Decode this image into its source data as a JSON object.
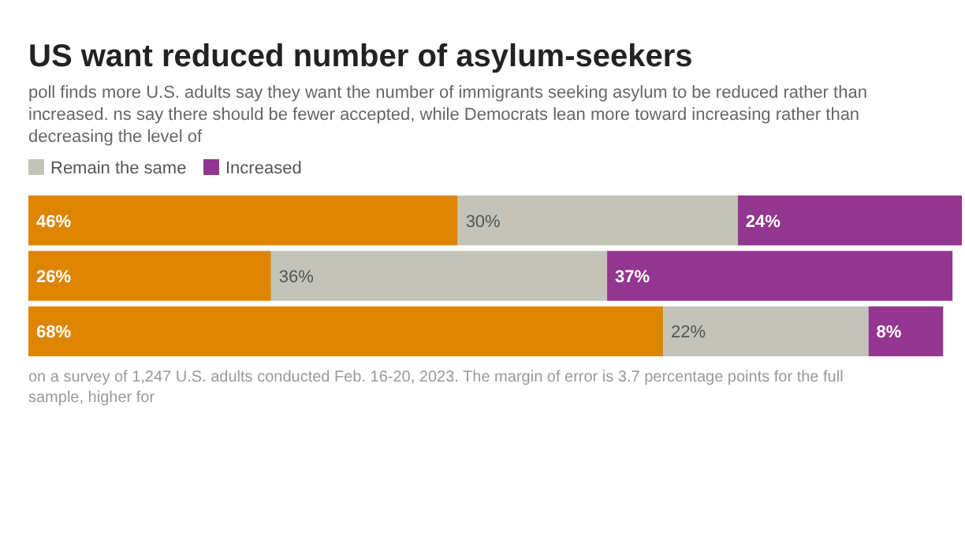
{
  "chart_data": {
    "type": "bar",
    "orientation": "horizontal",
    "stacked": true,
    "title": "US want reduced number of asylum-seekers",
    "subtitle": "poll finds more U.S. adults say they want the number of immigrants seeking asylum to be reduced rather than increased. ns say there should be fewer accepted, while Democrats lean more toward increasing rather than decreasing the level of",
    "categories": [
      null,
      null,
      null
    ],
    "series": [
      {
        "color": "#de8500",
        "values": [
          46,
          26,
          68
        ],
        "value_labels": [
          "46%",
          "26%",
          "68%"
        ]
      },
      {
        "name": "Remain the same",
        "color": "#c3c3b9",
        "values": [
          30,
          36,
          22
        ],
        "value_labels": [
          "30%",
          "36%",
          "22%"
        ]
      },
      {
        "name": "Increased",
        "color": "#93368f",
        "values": [
          24,
          37,
          8
        ],
        "value_labels": [
          "24%",
          "37%",
          "8%"
        ]
      }
    ],
    "legend": "top left",
    "annotations": [
      "on a survey of 1,247 U.S. adults conducted Feb. 16-20, 2023. The margin of error is 3.7 percentage points for the full sample, higher for"
    ]
  }
}
